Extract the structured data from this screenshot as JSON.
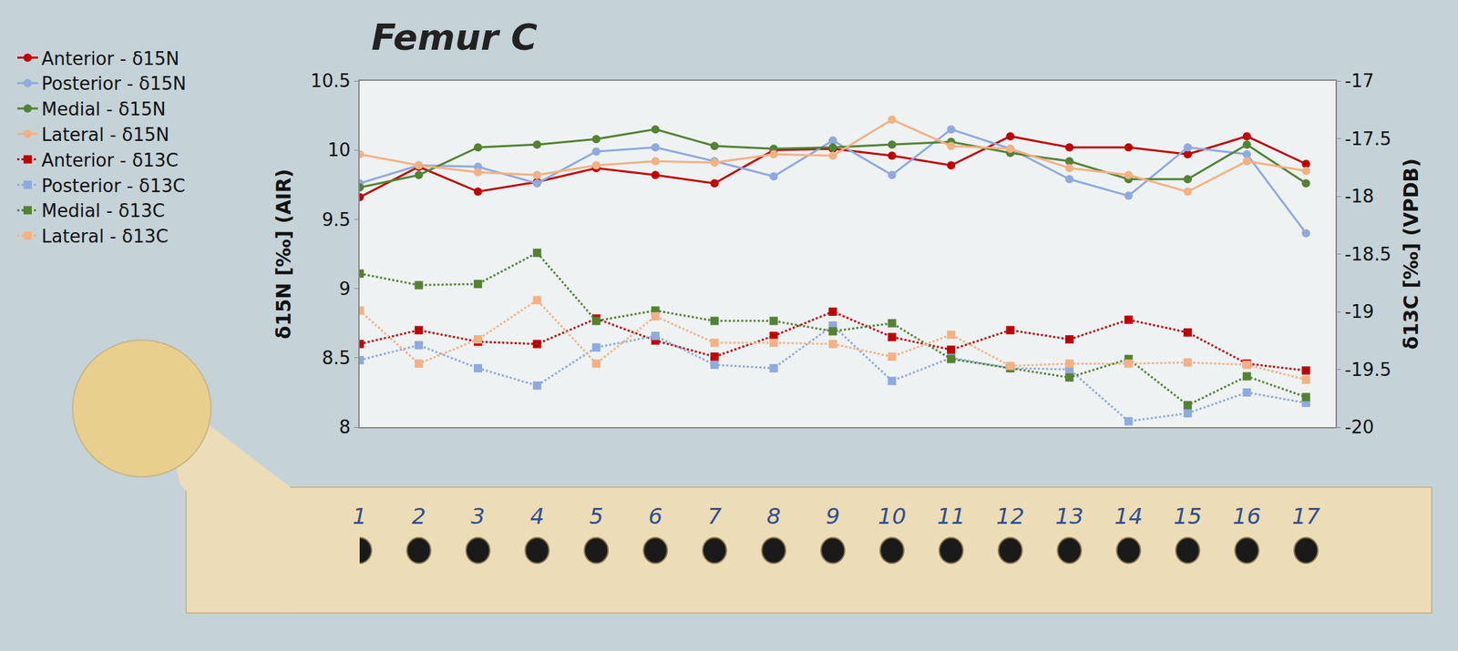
{
  "chart_data": {
    "type": "line",
    "title": "Femur C",
    "y_label": "δ15N [‰] (AIR)",
    "y2_label": "δ13C [‰] (VPDB)",
    "x": [
      1,
      2,
      3,
      4,
      5,
      6,
      7,
      8,
      9,
      10,
      11,
      12,
      13,
      14,
      15,
      16,
      17
    ],
    "xlim": [
      1,
      17.5
    ],
    "xticks": [
      1,
      2,
      3,
      4,
      5,
      6,
      7,
      8,
      9,
      10,
      11,
      12,
      13,
      14,
      15,
      16,
      17
    ],
    "ylim": [
      8,
      10.5
    ],
    "yticks": [
      8,
      8.5,
      9,
      9.5,
      10,
      10.5
    ],
    "y2lim": [
      -20,
      -17
    ],
    "y2ticks": [
      -20,
      -19.5,
      -19,
      -18.5,
      -18,
      -17.5,
      -17
    ],
    "grid": false,
    "legend": "top left",
    "series": [
      {
        "name": "Anterior - δ15N",
        "color": "#c00000",
        "marker": "circle",
        "line_style": "solid",
        "values": [
          9.66,
          9.88,
          9.7,
          9.77,
          9.87,
          9.82,
          9.76,
          10.0,
          10.01,
          9.96,
          9.89,
          10.1,
          10.02,
          10.02,
          9.97,
          10.1,
          9.9
        ]
      },
      {
        "name": "Posterior - δ15N",
        "color": "#8faadc",
        "marker": "circle",
        "line_style": "solid",
        "values": [
          9.76,
          9.89,
          9.88,
          9.76,
          9.99,
          10.02,
          9.92,
          9.81,
          10.07,
          9.82,
          10.15,
          10.01,
          9.79,
          9.67,
          10.02,
          9.97,
          9.4
        ]
      },
      {
        "name": "Medial - δ15N",
        "color": "#548235",
        "marker": "circle",
        "line_style": "solid",
        "values": [
          9.73,
          9.82,
          10.02,
          10.04,
          10.08,
          10.15,
          10.03,
          10.01,
          10.02,
          10.04,
          10.06,
          9.98,
          9.92,
          9.79,
          9.79,
          10.04,
          9.76
        ]
      },
      {
        "name": "Lateral - δ15N",
        "color": "#f4b183",
        "marker": "circle",
        "line_style": "solid",
        "values": [
          9.97,
          9.89,
          9.84,
          9.82,
          9.89,
          9.92,
          9.91,
          9.97,
          9.96,
          10.22,
          10.03,
          10.01,
          9.87,
          9.82,
          9.7,
          9.92,
          9.85
        ]
      },
      {
        "name": "Anterior - δ13C",
        "color": "#c00000",
        "marker": "square",
        "line_style": "dot",
        "axis": "y2",
        "values": [
          -19.28,
          -19.16,
          -19.26,
          -19.28,
          -19.06,
          -19.25,
          -19.39,
          -19.21,
          -19.0,
          -19.22,
          -19.33,
          -19.16,
          -19.24,
          -19.07,
          -19.18,
          -19.45,
          -19.51
        ]
      },
      {
        "name": "Posterior - δ13C",
        "color": "#8faadc",
        "marker": "square",
        "line_style": "dot",
        "axis": "y2",
        "values": [
          -19.42,
          -19.29,
          -19.49,
          -19.64,
          -19.31,
          -19.21,
          -19.46,
          -19.49,
          -19.12,
          -19.6,
          -19.4,
          -19.49,
          -19.5,
          -19.95,
          -19.88,
          -19.7,
          -19.79
        ]
      },
      {
        "name": "Medial - δ13C",
        "color": "#548235",
        "marker": "square",
        "line_style": "dot",
        "axis": "y2",
        "values": [
          -18.67,
          -18.77,
          -18.76,
          -18.49,
          -19.08,
          -18.99,
          -19.08,
          -19.08,
          -19.17,
          -19.1,
          -19.41,
          -19.49,
          -19.57,
          -19.41,
          -19.81,
          -19.56,
          -19.74
        ]
      },
      {
        "name": "Lateral - δ13C",
        "color": "#f4b183",
        "marker": "square",
        "line_style": "dot",
        "axis": "y2",
        "values": [
          -18.99,
          -19.45,
          -19.24,
          -18.9,
          -19.45,
          -19.04,
          -19.27,
          -19.27,
          -19.28,
          -19.39,
          -19.2,
          -19.47,
          -19.45,
          -19.45,
          -19.44,
          -19.46,
          -19.59
        ]
      }
    ]
  }
}
